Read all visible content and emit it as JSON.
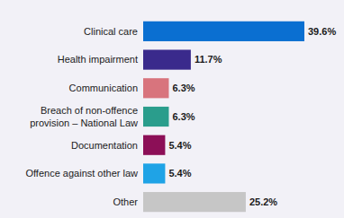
{
  "chart_data": {
    "type": "bar",
    "orientation": "horizontal",
    "categories": [
      "Clinical care",
      "Health impairment",
      "Communication",
      "Breach of non-offence provision – National Law",
      "Documentation",
      "Offence against other law",
      "Other"
    ],
    "values": [
      39.6,
      11.7,
      6.3,
      6.3,
      5.4,
      5.4,
      25.2
    ],
    "value_labels": [
      "39.6%",
      "11.7%",
      "6.3%",
      "6.3%",
      "5.4%",
      "5.4%",
      "25.2%"
    ],
    "colors": [
      "#0a6fd1",
      "#3a2a8c",
      "#d8747d",
      "#2a9d8c",
      "#8c0f57",
      "#1fa3e6",
      "#c6c6c6"
    ],
    "data_labels": true,
    "tick_labels": false,
    "grid": false
  }
}
